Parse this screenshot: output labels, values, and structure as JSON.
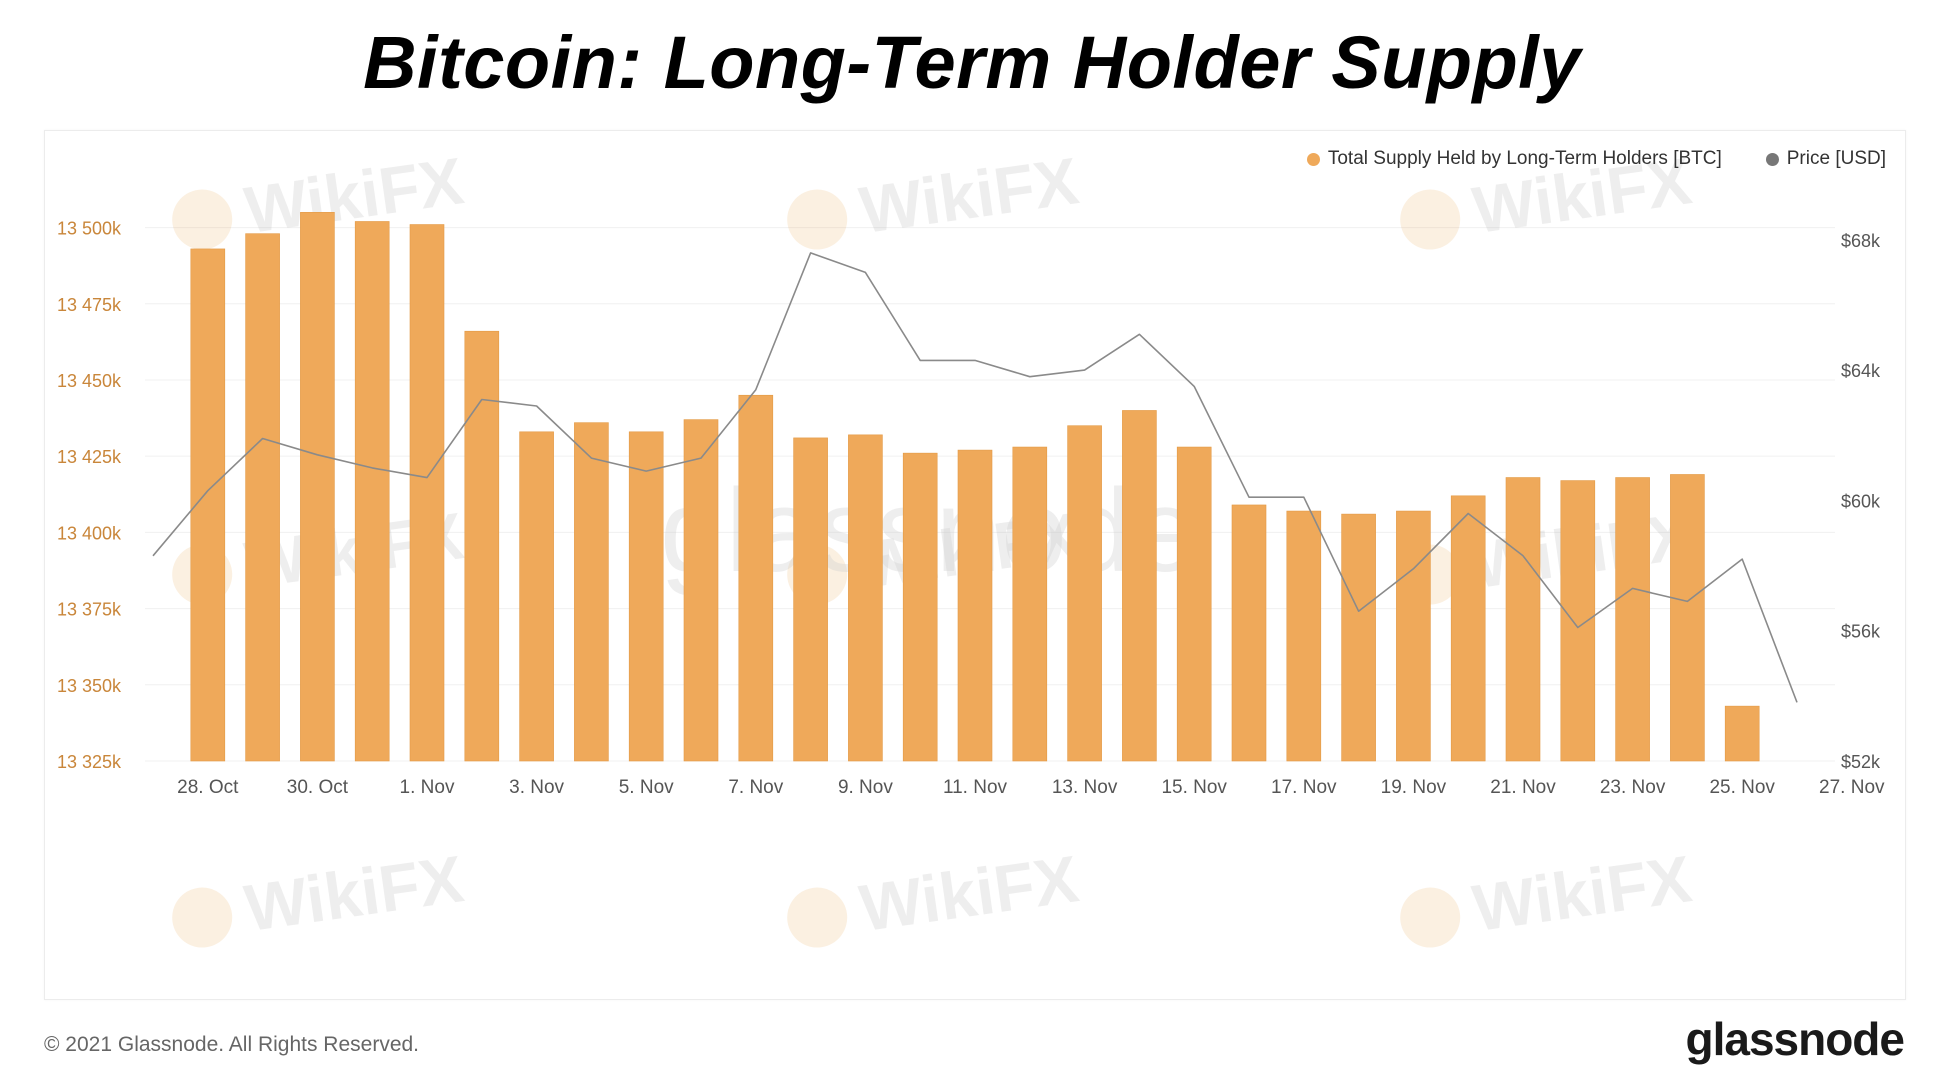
{
  "title": "Bitcoin: Long-Term Holder Supply",
  "footer": {
    "copyright": "© 2021 Glassnode. All Rights Reserved.",
    "logo": "glassnode"
  },
  "watermarks": [
    "WikiFX",
    "glassnode"
  ],
  "colors": {
    "bar": "#EFA95A",
    "bar_edge": "#E39A45",
    "price_line": "#8a8a8a",
    "left_axis": "#C9863A",
    "right_axis": "#555555",
    "grid": "#f0f0f0"
  },
  "chart_data": {
    "type": "bar",
    "grid": true,
    "legend_position": "top-right",
    "x": [
      "27. Oct",
      "28. Oct",
      "29. Oct",
      "30. Oct",
      "31. Oct",
      "1. Nov",
      "2. Nov",
      "3. Nov",
      "4. Nov",
      "5. Nov",
      "6. Nov",
      "7. Nov",
      "8. Nov",
      "9. Nov",
      "10. Nov",
      "11. Nov",
      "12. Nov",
      "13. Nov",
      "14. Nov",
      "15. Nov",
      "16. Nov",
      "17. Nov",
      "18. Nov",
      "19. Nov",
      "20. Nov",
      "21. Nov",
      "22. Nov",
      "23. Nov",
      "24. Nov",
      "25. Nov",
      "26. Nov"
    ],
    "x_ticks": [
      "28. Oct",
      "30. Oct",
      "1. Nov",
      "3. Nov",
      "5. Nov",
      "7. Nov",
      "9. Nov",
      "11. Nov",
      "13. Nov",
      "15. Nov",
      "17. Nov",
      "19. Nov",
      "21. Nov",
      "23. Nov",
      "25. Nov",
      "27. Nov"
    ],
    "series": [
      {
        "name": "Total Supply Held by Long-Term Holders [BTC]",
        "type": "bar",
        "axis": "left",
        "x": [
          "28. Oct",
          "29. Oct",
          "30. Oct",
          "31. Oct",
          "1. Nov",
          "2. Nov",
          "3. Nov",
          "4. Nov",
          "5. Nov",
          "6. Nov",
          "7. Nov",
          "8. Nov",
          "9. Nov",
          "10. Nov",
          "11. Nov",
          "12. Nov",
          "13. Nov",
          "14. Nov",
          "15. Nov",
          "16. Nov",
          "17. Nov",
          "18. Nov",
          "19. Nov",
          "20. Nov",
          "21. Nov",
          "22. Nov",
          "23. Nov",
          "24. Nov",
          "25. Nov"
        ],
        "values": [
          13493,
          13498,
          13505,
          13502,
          13501,
          13466,
          13433,
          13436,
          13433,
          13437,
          13445,
          13431,
          13432,
          13426,
          13427,
          13428,
          13435,
          13440,
          13428,
          13409,
          13407,
          13406,
          13407,
          13412,
          13418,
          13417,
          13418,
          13419,
          13343
        ]
      },
      {
        "name": "Price [USD]",
        "type": "line",
        "axis": "right",
        "x": [
          "27. Oct",
          "28. Oct",
          "29. Oct",
          "30. Oct",
          "31. Oct",
          "1. Nov",
          "2. Nov",
          "3. Nov",
          "4. Nov",
          "5. Nov",
          "6. Nov",
          "7. Nov",
          "8. Nov",
          "9. Nov",
          "10. Nov",
          "11. Nov",
          "12. Nov",
          "13. Nov",
          "14. Nov",
          "15. Nov",
          "16. Nov",
          "17. Nov",
          "18. Nov",
          "19. Nov",
          "20. Nov",
          "21. Nov",
          "22. Nov",
          "23. Nov",
          "24. Nov",
          "25. Nov",
          "26. Nov"
        ],
        "values": [
          58300,
          60300,
          61900,
          61400,
          61000,
          60700,
          63100,
          62900,
          61300,
          60900,
          61300,
          63400,
          67600,
          67000,
          64300,
          64300,
          63800,
          64000,
          65100,
          63500,
          60100,
          60100,
          56600,
          57900,
          59600,
          58300,
          56100,
          57300,
          56900,
          58200,
          53800
        ]
      }
    ],
    "y_left": {
      "ticks": [
        13325,
        13350,
        13375,
        13400,
        13425,
        13450,
        13475,
        13500
      ],
      "tick_labels": [
        "13 325k",
        "13 350k",
        "13 375k",
        "13 400k",
        "13 425k",
        "13 450k",
        "13 475k",
        "13 500k"
      ],
      "range": [
        13325,
        13512
      ]
    },
    "y_right": {
      "ticks": [
        52000,
        56000,
        60000,
        64000,
        68000
      ],
      "tick_labels": [
        "$52k",
        "$56k",
        "$60k",
        "$64k",
        "$68k"
      ],
      "range": [
        52000,
        69500
      ]
    }
  }
}
